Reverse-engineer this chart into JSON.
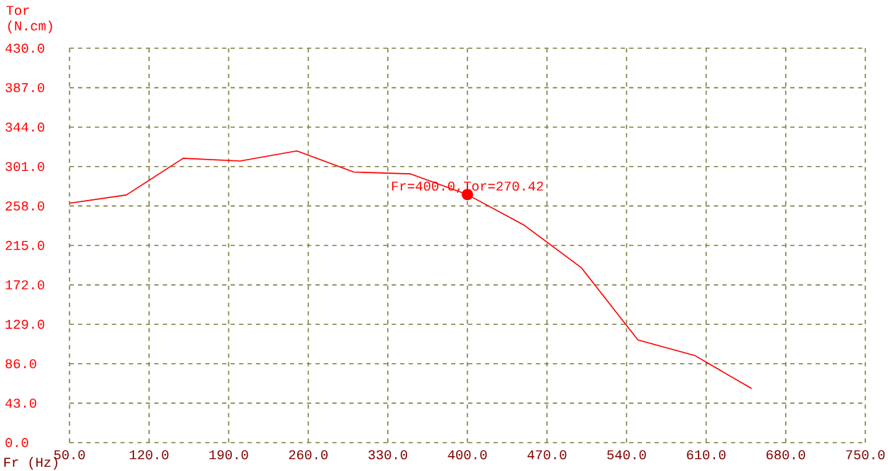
{
  "chart_data": {
    "type": "line",
    "xlabel": "Fr (Hz)",
    "ylabel": "Tor (N.cm)",
    "x": [
      50,
      100,
      150,
      200,
      250,
      300,
      350,
      400,
      450,
      500,
      550,
      600,
      650
    ],
    "series": [
      {
        "color": "#ff0000",
        "values": [
          261,
          270,
          310,
          307,
          318,
          295,
          293,
          270.42,
          237,
          191,
          112,
          95,
          59
        ]
      }
    ],
    "xlim": [
      50,
      750
    ],
    "ylim": [
      0,
      430
    ],
    "xticks": [
      {
        "value": 50,
        "label": "50.0"
      },
      {
        "value": 120,
        "label": "120.0"
      },
      {
        "value": 190,
        "label": "190.0"
      },
      {
        "value": 260,
        "label": "260.0"
      },
      {
        "value": 330,
        "label": "330.0"
      },
      {
        "value": 400,
        "label": "400.0"
      },
      {
        "value": 470,
        "label": "470.0"
      },
      {
        "value": 540,
        "label": "540.0"
      },
      {
        "value": 610,
        "label": "610.0"
      },
      {
        "value": 680,
        "label": "680.0"
      },
      {
        "value": 750,
        "label": "750.0"
      }
    ],
    "yticks": [
      {
        "value": 0,
        "label": "0.0"
      },
      {
        "value": 43,
        "label": "43.0"
      },
      {
        "value": 86,
        "label": "86.0"
      },
      {
        "value": 129,
        "label": "129.0"
      },
      {
        "value": 172,
        "label": "172.0"
      },
      {
        "value": 215,
        "label": "215.0"
      },
      {
        "value": 258,
        "label": "258.0"
      },
      {
        "value": 301,
        "label": "301.0"
      },
      {
        "value": 344,
        "label": "344.0"
      },
      {
        "value": 387,
        "label": "387.0"
      },
      {
        "value": 430,
        "label": "430.0"
      }
    ],
    "grid": true,
    "marker": "none",
    "line_style": "solid",
    "annotations": [
      {
        "text": "Fr=400.0,Tor=270.42",
        "x": 400,
        "y": 270.42
      }
    ]
  }
}
